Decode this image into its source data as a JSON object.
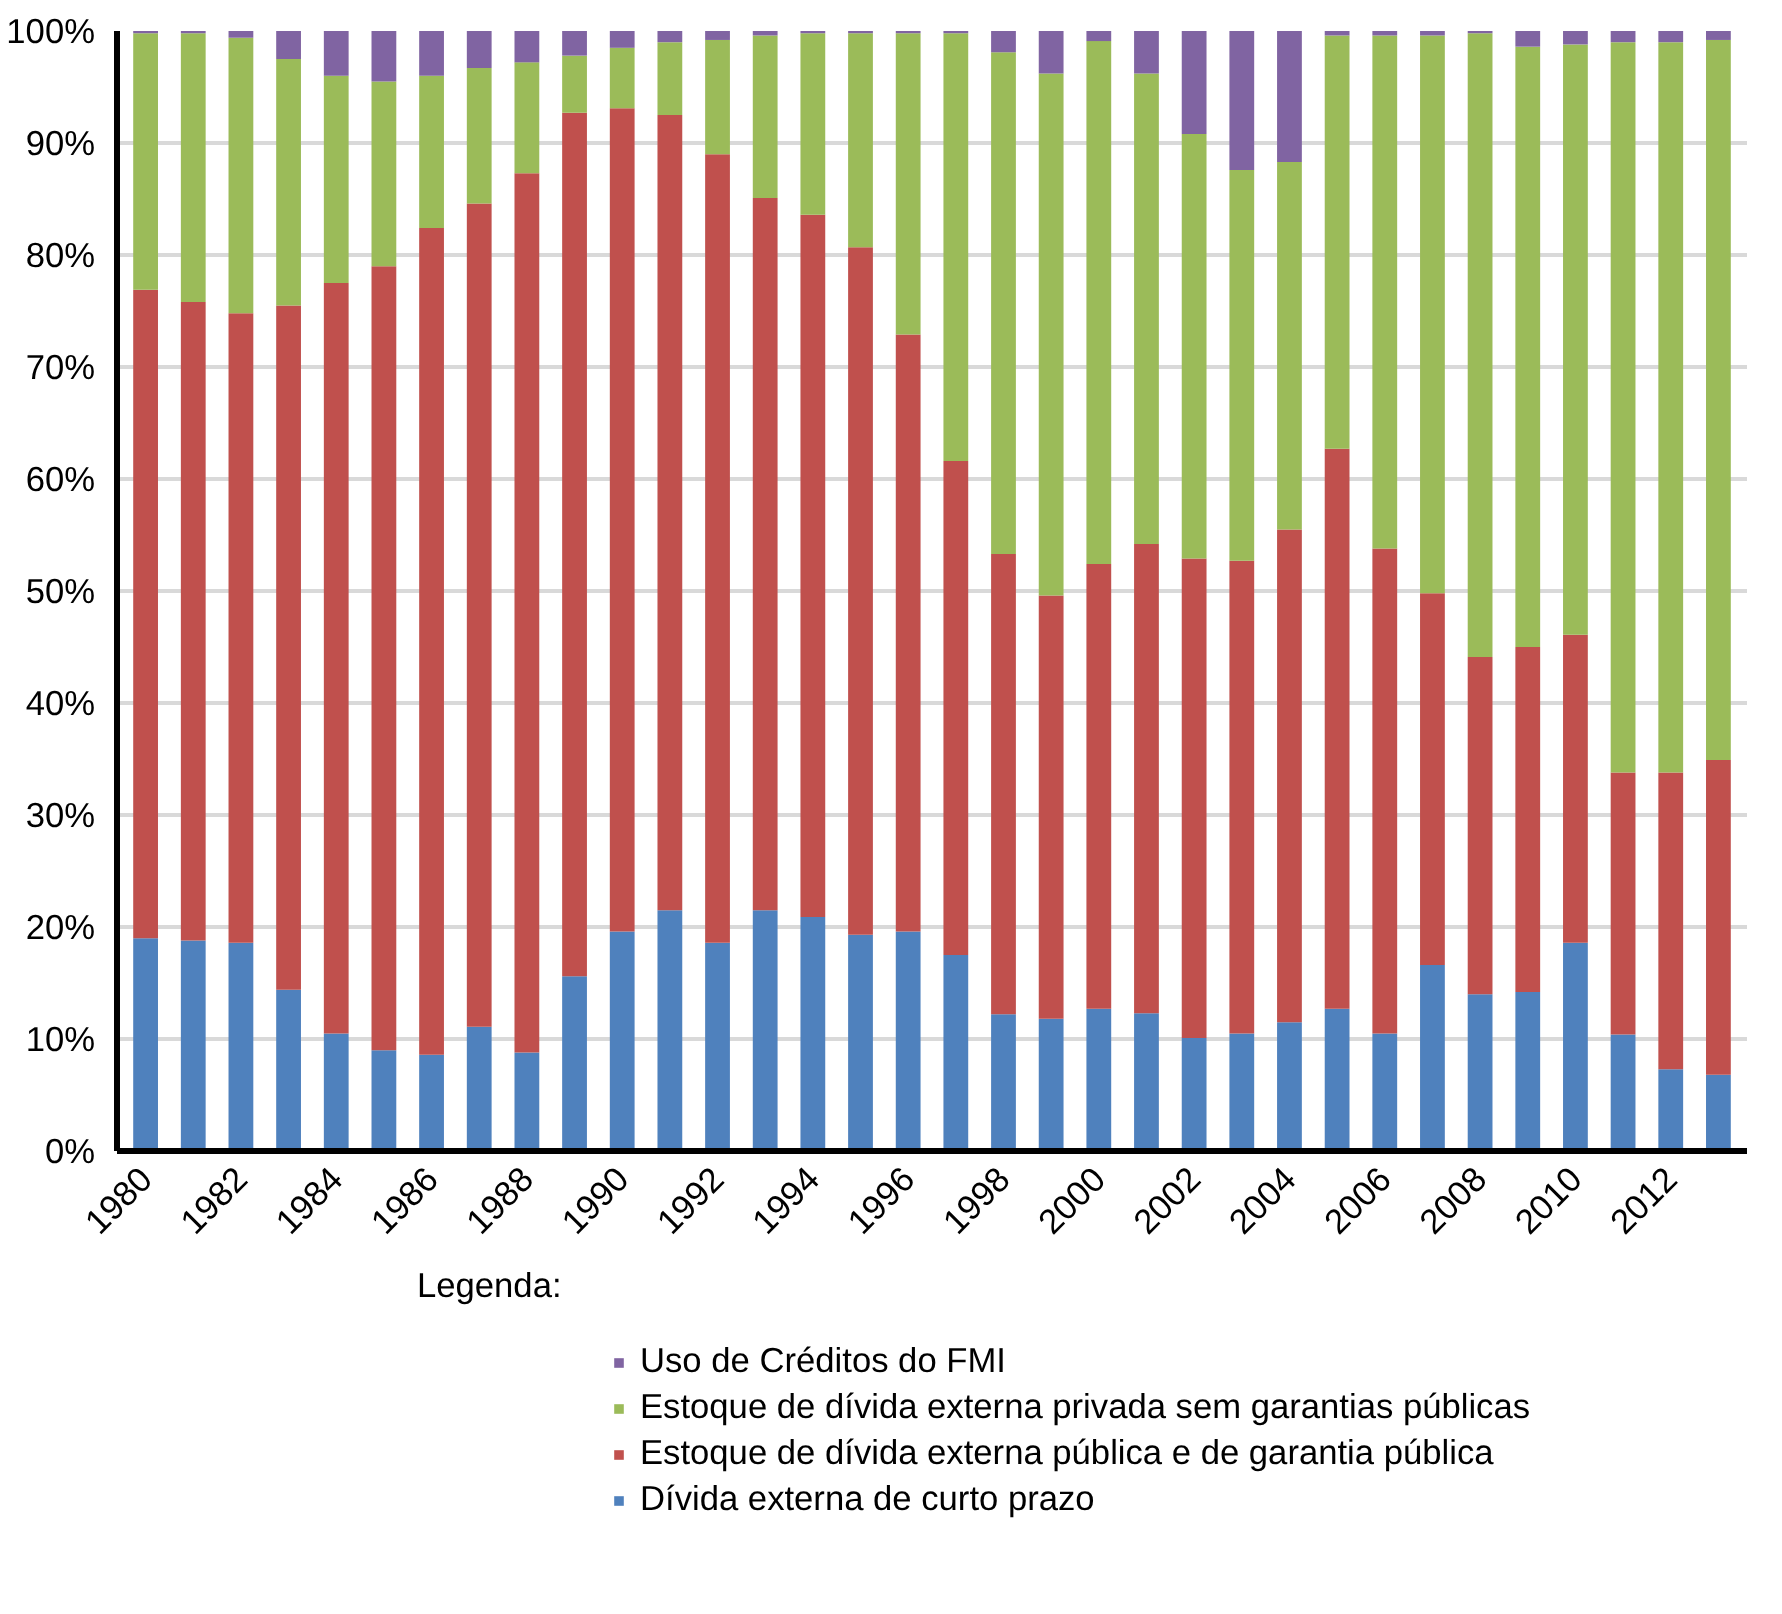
{
  "chart_data": {
    "type": "bar",
    "stacked": true,
    "categories": [
      "1980",
      null,
      "1982",
      null,
      "1984",
      null,
      "1986",
      null,
      "1988",
      null,
      "1990",
      null,
      "1992",
      null,
      "1994",
      null,
      "1996",
      null,
      "1998",
      null,
      "2000",
      null,
      "2002",
      null,
      "2004",
      null,
      "2006",
      null,
      "2008",
      null,
      "2010",
      null,
      "2012",
      null
    ],
    "series": [
      {
        "name": "Dívida externa de curto prazo",
        "color": "#4f81bd",
        "values": [
          19.0,
          18.8,
          18.6,
          14.4,
          10.5,
          9.0,
          8.6,
          11.1,
          8.8,
          15.6,
          19.6,
          21.5,
          18.6,
          21.5,
          20.9,
          19.3,
          19.6,
          17.5,
          12.2,
          11.8,
          12.7,
          12.3,
          10.1,
          10.5,
          11.5,
          12.7,
          10.5,
          16.6,
          14.0,
          14.2,
          18.6,
          10.4,
          7.3,
          6.8
        ]
      },
      {
        "name": "Estoque de dívida externa pública e de garantia pública",
        "color": "#c0504d",
        "values": [
          57.9,
          57.0,
          56.2,
          61.1,
          67.0,
          70.0,
          73.8,
          73.5,
          78.5,
          77.1,
          73.5,
          71.0,
          70.4,
          63.6,
          62.7,
          61.4,
          53.3,
          44.1,
          41.1,
          37.8,
          39.7,
          41.9,
          42.8,
          42.2,
          44.0,
          50.0,
          43.3,
          33.2,
          30.1,
          30.8,
          27.5,
          23.4,
          26.5,
          28.1
        ]
      },
      {
        "name": "Estoque de dívida externa privada sem garantias públicas",
        "color": "#9bbb59",
        "values": [
          22.9,
          24.0,
          24.6,
          22.0,
          18.5,
          16.5,
          13.6,
          12.1,
          9.9,
          5.1,
          5.4,
          6.5,
          10.2,
          14.5,
          16.2,
          19.1,
          26.9,
          38.2,
          44.8,
          46.6,
          46.7,
          42.0,
          37.9,
          34.9,
          32.8,
          36.9,
          45.8,
          49.8,
          55.7,
          53.6,
          52.7,
          65.2,
          65.2,
          64.3
        ]
      },
      {
        "name": "Uso de Créditos do FMI",
        "color": "#8064a2",
        "values": [
          0.2,
          0.2,
          0.6,
          2.5,
          4.0,
          4.5,
          4.0,
          3.3,
          2.8,
          2.2,
          1.5,
          1.0,
          0.8,
          0.4,
          0.2,
          0.2,
          0.2,
          0.2,
          1.9,
          3.8,
          0.9,
          3.8,
          9.2,
          12.4,
          11.7,
          0.4,
          0.4,
          0.4,
          0.2,
          1.4,
          1.2,
          1.0,
          1.0,
          0.8
        ]
      }
    ],
    "ylim": [
      0,
      100
    ],
    "yticks": [
      {
        "value": 0,
        "label": "0%"
      },
      {
        "value": 10,
        "label": "10%"
      },
      {
        "value": 20,
        "label": "20%"
      },
      {
        "value": 30,
        "label": "30%"
      },
      {
        "value": 40,
        "label": "40%"
      },
      {
        "value": 50,
        "label": "50%"
      },
      {
        "value": 60,
        "label": "60%"
      },
      {
        "value": 70,
        "label": "70%"
      },
      {
        "value": 80,
        "label": "80%"
      },
      {
        "value": 90,
        "label": "90%"
      },
      {
        "value": 100,
        "label": "100%"
      }
    ],
    "grid": "y",
    "legend": "bottom",
    "legend_title": "Legenda:"
  }
}
